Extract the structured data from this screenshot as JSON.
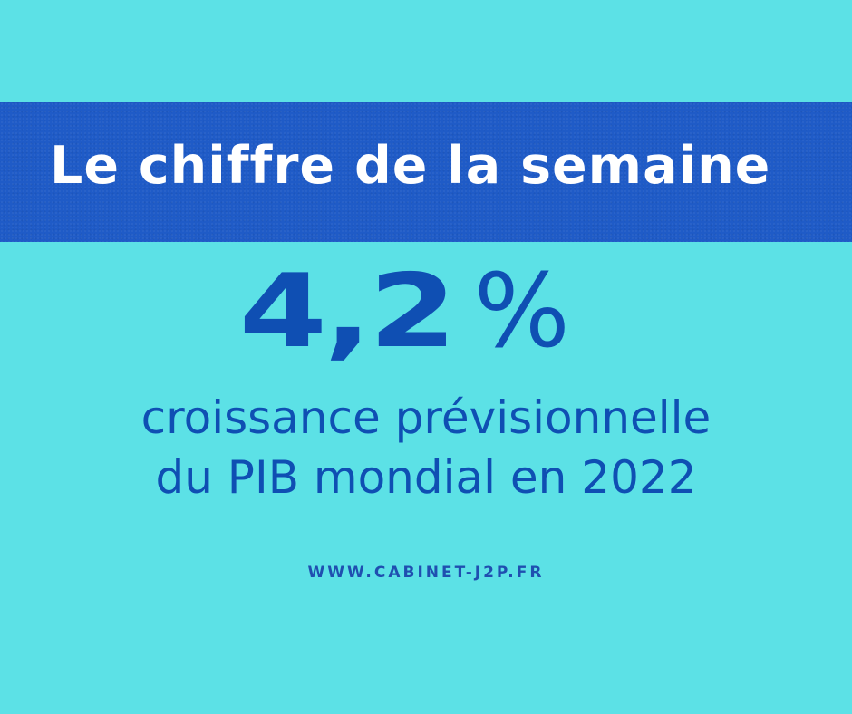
{
  "banner": {
    "title": "Le chiffre de la semaine",
    "color": "#1f5bc7"
  },
  "figure": {
    "value": "4,2",
    "unit": "%",
    "color": "#0f4fb3"
  },
  "description": {
    "line1": "croissance prévisionnelle",
    "line2": "du PIB mondial en 2022"
  },
  "footer": {
    "website": "WWW.CABINET-J2P.FR"
  },
  "theme": {
    "background": "#5ce1e6",
    "text_light": "#ffffff"
  }
}
